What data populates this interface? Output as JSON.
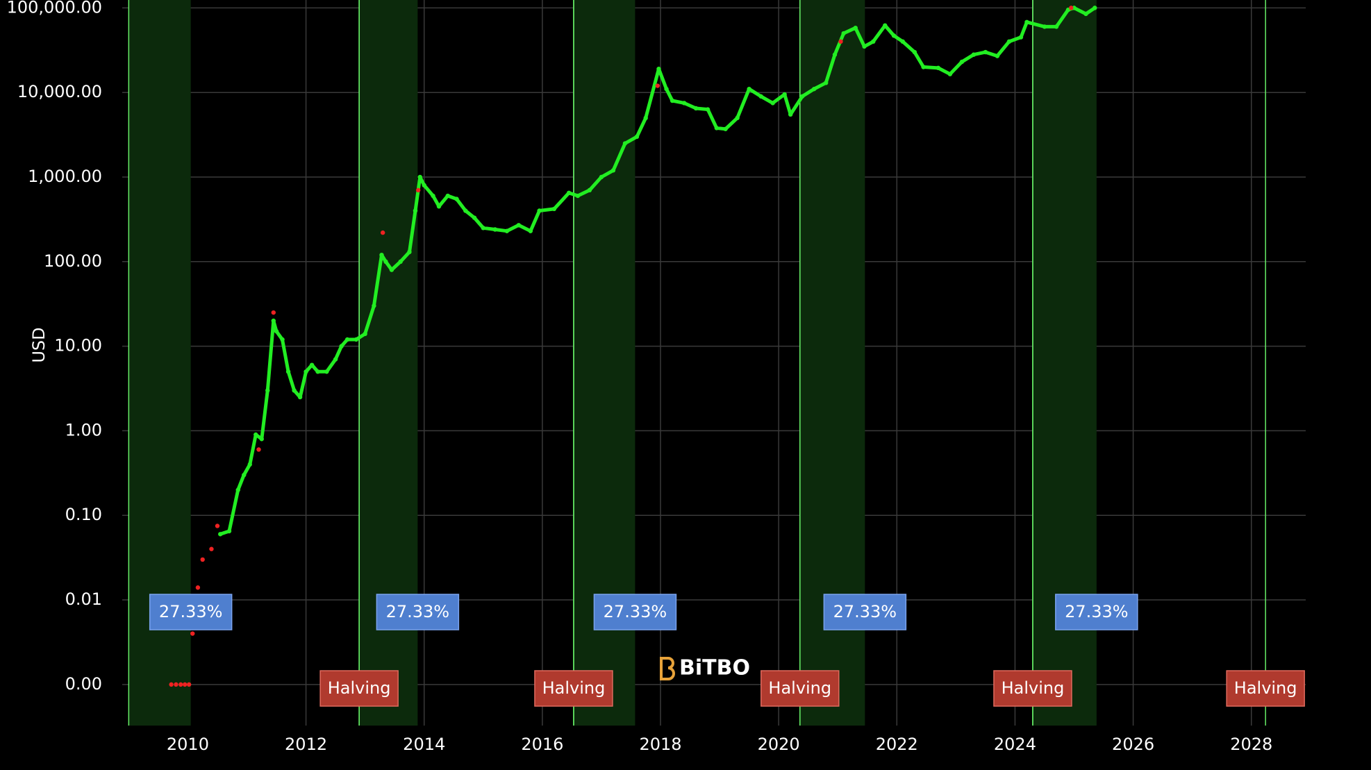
{
  "chart_data": {
    "type": "scatter",
    "ylabel": "USD",
    "log_y": true,
    "grid": true,
    "background": "#000000",
    "watermark": "BiTBO",
    "xlim": [
      2008.89,
      2028.92
    ],
    "xticks": [
      2010,
      2012,
      2014,
      2016,
      2018,
      2020,
      2022,
      2024,
      2026,
      2028
    ],
    "ylim": [
      0.000327,
      124000
    ],
    "yticks": [
      {
        "value": 0.001,
        "label": "0.00"
      },
      {
        "value": 0.01,
        "label": "0.01"
      },
      {
        "value": 0.1,
        "label": "0.10"
      },
      {
        "value": 1,
        "label": "1.00"
      },
      {
        "value": 10,
        "label": "10.00"
      },
      {
        "value": 100,
        "label": "100.00"
      },
      {
        "value": 1000,
        "label": "1,000.00"
      },
      {
        "value": 10000,
        "label": "10,000.00"
      },
      {
        "value": 100000,
        "label": "100,000.00"
      }
    ],
    "regions": [
      {
        "start": 2009.0,
        "end": 2010.05,
        "label": "27.33%"
      },
      {
        "start": 2012.9,
        "end": 2013.89,
        "label": "27.33%"
      },
      {
        "start": 2016.53,
        "end": 2017.57,
        "label": "27.33%"
      },
      {
        "start": 2020.36,
        "end": 2021.46,
        "label": "27.33%"
      },
      {
        "start": 2024.3,
        "end": 2025.38,
        "label": "27.33%"
      }
    ],
    "halvings": [
      {
        "x": 2012.9,
        "label": "Halving"
      },
      {
        "x": 2016.53,
        "label": "Halving"
      },
      {
        "x": 2020.36,
        "label": "Halving"
      },
      {
        "x": 2024.3,
        "label": "Halving"
      },
      {
        "x": 2028.24,
        "label": "Halving"
      }
    ],
    "series": [
      {
        "color": "#22ee22",
        "connect": true,
        "x": [
          2010.55,
          2010.7,
          2010.85,
          2010.95,
          2011.05,
          2011.15,
          2011.25,
          2011.35,
          2011.45,
          2011.5,
          2011.6,
          2011.7,
          2011.8,
          2011.9,
          2012.0,
          2012.1,
          2012.2,
          2012.35,
          2012.5,
          2012.6,
          2012.7,
          2012.85,
          2013.0,
          2013.15,
          2013.28,
          2013.35,
          2013.45,
          2013.6,
          2013.75,
          2013.85,
          2013.93,
          2014.0,
          2014.15,
          2014.25,
          2014.4,
          2014.55,
          2014.7,
          2014.85,
          2015.0,
          2015.2,
          2015.4,
          2015.6,
          2015.8,
          2015.95,
          2016.2,
          2016.45,
          2016.6,
          2016.8,
          2017.0,
          2017.2,
          2017.4,
          2017.6,
          2017.75,
          2017.97,
          2018.1,
          2018.2,
          2018.4,
          2018.6,
          2018.8,
          2018.95,
          2019.1,
          2019.3,
          2019.5,
          2019.7,
          2019.9,
          2020.1,
          2020.2,
          2020.4,
          2020.6,
          2020.8,
          2020.95,
          2021.1,
          2021.3,
          2021.45,
          2021.6,
          2021.8,
          2021.95,
          2022.1,
          2022.3,
          2022.45,
          2022.7,
          2022.9,
          2023.1,
          2023.3,
          2023.5,
          2023.7,
          2023.9,
          2024.1,
          2024.2,
          2024.5,
          2024.7,
          2024.9,
          2025.0,
          2025.2,
          2025.35
        ],
        "values": [
          0.06,
          0.065,
          0.2,
          0.3,
          0.4,
          0.9,
          0.8,
          3,
          20,
          15,
          12,
          5,
          3,
          2.5,
          5,
          6,
          5,
          5,
          7,
          10,
          12,
          12,
          14,
          30,
          120,
          100,
          80,
          100,
          130,
          400,
          1000,
          800,
          600,
          450,
          600,
          550,
          400,
          330,
          250,
          240,
          230,
          270,
          230,
          400,
          420,
          650,
          600,
          700,
          1000,
          1200,
          2500,
          3000,
          5000,
          19000,
          11000,
          8000,
          7500,
          6500,
          6300,
          3800,
          3700,
          5000,
          11000,
          9000,
          7500,
          9500,
          5500,
          9000,
          11000,
          13000,
          28000,
          50000,
          58000,
          35000,
          40000,
          62000,
          47000,
          40000,
          30000,
          20000,
          19500,
          16500,
          23000,
          28000,
          30000,
          27000,
          40000,
          45000,
          68000,
          60000,
          60000,
          95000,
          100000,
          85000,
          100000
        ]
      },
      {
        "color": "#ee2222",
        "connect": false,
        "x": [
          2009.72,
          2009.8,
          2009.88,
          2009.95,
          2010.02,
          2010.08,
          2010.17,
          2010.25,
          2010.4,
          2010.5,
          2011.2,
          2011.45,
          2013.3,
          2013.9,
          2017.95,
          2021.05,
          2024.95
        ],
        "values": [
          0.001,
          0.001,
          0.001,
          0.001,
          0.001,
          0.004,
          0.014,
          0.03,
          0.04,
          0.075,
          0.6,
          25,
          220,
          700,
          12000,
          40000,
          100000
        ]
      }
    ]
  }
}
